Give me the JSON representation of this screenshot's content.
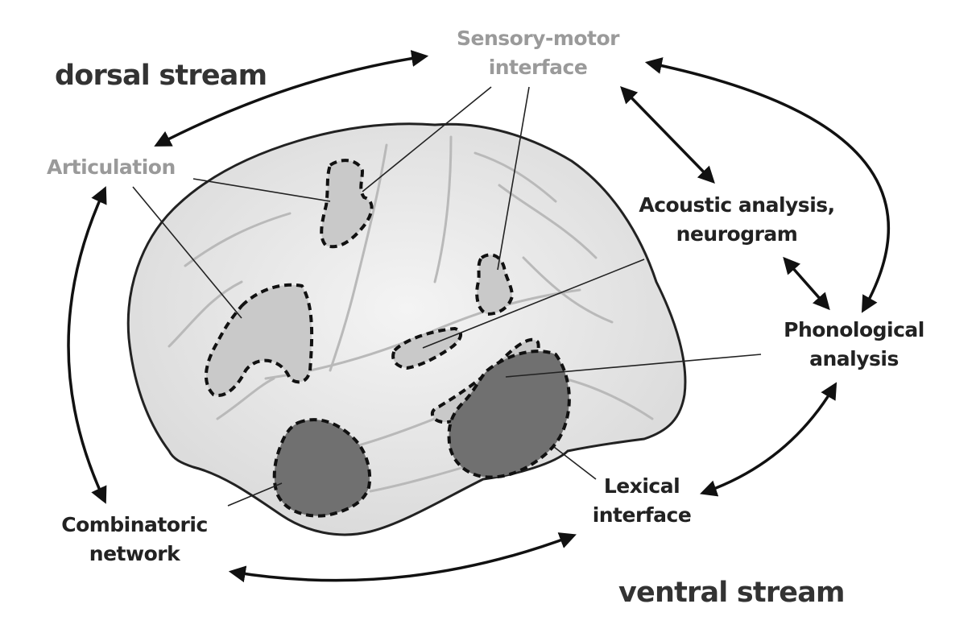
{
  "streams": {
    "dorsal": "dorsal stream",
    "ventral": "ventral stream"
  },
  "regions": {
    "sensory_motor": [
      "Sensory-motor",
      "interface"
    ],
    "articulation": "Articulation",
    "acoustic": [
      "Acoustic analysis,",
      "neurogram"
    ],
    "phonological": [
      "Phonological",
      "analysis"
    ],
    "lexical": [
      "Lexical",
      "interface"
    ],
    "combinatoric": [
      "Combinatoric",
      "network"
    ]
  },
  "colors": {
    "dorsal_label": "#9a9a9a",
    "ventral_label": "#222222",
    "brain_surface": "#e7e7e7",
    "dorsal_region_fill": "#c9c9c9",
    "ventral_region_fill": "#707070"
  }
}
